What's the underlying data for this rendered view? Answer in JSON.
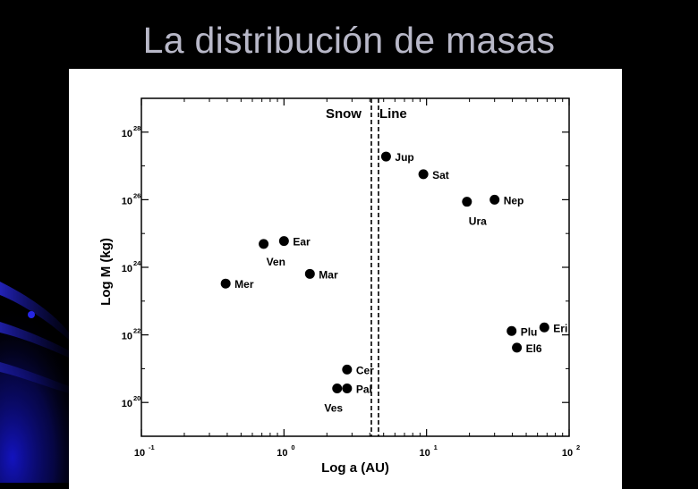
{
  "slide": {
    "title": "La distribución de masas"
  },
  "colors": {
    "background": "#000000",
    "title": "#b8b8c8",
    "panel": "#ffffff",
    "ink": "#000000",
    "accent": "#1414c8"
  },
  "chart_data": {
    "type": "scatter",
    "title": "",
    "xlabel": "Log a (AU)",
    "ylabel": "Log M (kg)",
    "x_scale": "log",
    "y_scale": "log",
    "xlim": [
      0.1,
      100
    ],
    "ylim": [
      1e+19,
      1e+29
    ],
    "x_ticks": [
      {
        "value": 0.1,
        "base": "10",
        "exp": "-1"
      },
      {
        "value": 1,
        "base": "10",
        "exp": "0"
      },
      {
        "value": 10,
        "base": "10",
        "exp": "1"
      },
      {
        "value": 100,
        "base": "10",
        "exp": "2"
      }
    ],
    "y_ticks": [
      {
        "value": 1e+20,
        "base": "10",
        "exp": "20"
      },
      {
        "value": 1e+22,
        "base": "10",
        "exp": "22"
      },
      {
        "value": 1e+24,
        "base": "10",
        "exp": "24"
      },
      {
        "value": 1e+26,
        "base": "10",
        "exp": "26"
      },
      {
        "value": 1e+28,
        "base": "10",
        "exp": "28"
      }
    ],
    "grid": false,
    "snow_line": {
      "label_left": "Snow",
      "label_right": "Line",
      "x": [
        4.1,
        4.6
      ]
    },
    "points": [
      {
        "label": "Mer",
        "x": 0.39,
        "y": 3.3e+23,
        "label_pos": "right"
      },
      {
        "label": "Ven",
        "x": 0.72,
        "y": 4.9e+24,
        "label_pos": "below-right"
      },
      {
        "label": "Ear",
        "x": 1.0,
        "y": 6e+24,
        "label_pos": "right"
      },
      {
        "label": "Mar",
        "x": 1.52,
        "y": 6.4e+23,
        "label_pos": "right"
      },
      {
        "label": "Ves",
        "x": 2.36,
        "y": 2.6e+20,
        "label_pos": "below"
      },
      {
        "label": "Pal",
        "x": 2.77,
        "y": 2.6e+20,
        "label_pos": "right"
      },
      {
        "label": "Cer",
        "x": 2.77,
        "y": 9.4e+20,
        "label_pos": "right"
      },
      {
        "label": "Jup",
        "x": 5.2,
        "y": 1.9e+27,
        "label_pos": "right"
      },
      {
        "label": "Sat",
        "x": 9.5,
        "y": 5.7e+26,
        "label_pos": "right"
      },
      {
        "label": "Ura",
        "x": 19.2,
        "y": 8.7e+25,
        "label_pos": "below"
      },
      {
        "label": "Nep",
        "x": 30.0,
        "y": 1e+26,
        "label_pos": "right"
      },
      {
        "label": "Plu",
        "x": 39.5,
        "y": 1.3e+22,
        "label_pos": "right"
      },
      {
        "label": "El6",
        "x": 43.0,
        "y": 4.2e+21,
        "label_pos": "right"
      },
      {
        "label": "Eri",
        "x": 67.0,
        "y": 1.66e+22,
        "label_pos": "right",
        "display": "Eri"
      }
    ]
  }
}
